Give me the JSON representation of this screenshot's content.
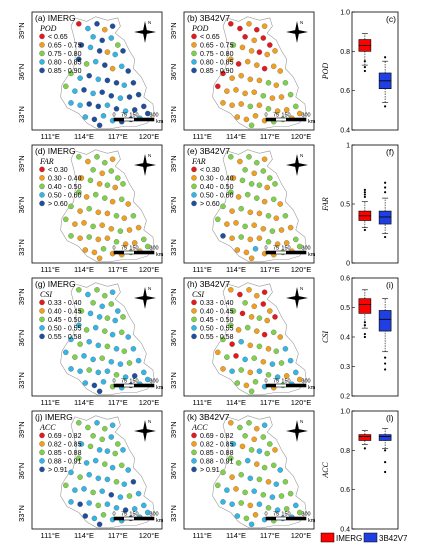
{
  "colors": {
    "dot": [
      "#e31a1c",
      "#f0a01e",
      "#7fd14b",
      "#33b5e5",
      "#1f4e9c"
    ],
    "imerg": "#ff0000",
    "gpm3b42": "#1f3fe0",
    "map_outline": "#9a9a9a"
  },
  "tick_labels": {
    "lat": [
      "39°N",
      "36°N",
      "33°N"
    ],
    "lon": [
      "111°E",
      "114°E",
      "117°E",
      "120°E"
    ]
  },
  "scale_bar": {
    "ticks": [
      "0",
      "75",
      "150",
      "300"
    ],
    "unit": "km"
  },
  "legend_bottom": [
    {
      "label": "IMERG",
      "color": "#ff0000"
    },
    {
      "label": "3B42V7",
      "color": "#1f3fe0"
    }
  ],
  "rows": [
    {
      "metric": "POD",
      "class_labels": [
        "< 0.65",
        "0.65 - 0.75",
        "0.75 - 0.80",
        "0.80 - 0.85",
        "0.85 - 0.90"
      ],
      "maps": [
        {
          "panel": "(a)",
          "product": "IMERG",
          "classes": [
            0,
            3,
            4,
            1,
            4,
            3,
            4,
            3,
            2,
            4,
            3,
            4,
            1,
            3,
            4,
            4,
            2,
            3,
            4,
            1,
            3,
            4,
            2,
            3,
            4,
            3,
            4,
            4,
            3,
            4,
            2,
            3,
            4,
            3,
            4,
            4,
            3,
            4,
            4,
            3,
            3,
            4,
            4,
            3,
            4,
            3,
            4,
            4,
            3,
            4,
            3,
            3,
            4,
            4,
            3,
            4,
            4
          ]
        },
        {
          "panel": "(b)",
          "product": "3B42V7",
          "classes": [
            0,
            0,
            1,
            0,
            1,
            0,
            1,
            0,
            0,
            2,
            1,
            1,
            0,
            1,
            1,
            1,
            0,
            1,
            1,
            0,
            1,
            1,
            0,
            1,
            1,
            1,
            1,
            2,
            1,
            2,
            0,
            1,
            1,
            1,
            1,
            2,
            1,
            1,
            2,
            1,
            1,
            1,
            2,
            1,
            2,
            1,
            1,
            2,
            1,
            1,
            1,
            1,
            2,
            2,
            1,
            1,
            2
          ]
        }
      ],
      "box": {
        "panel": "(c)",
        "ylabel": "POD",
        "ylim": [
          0.4,
          1.0
        ],
        "yticks": [
          "0.4",
          "0.6",
          "0.8",
          "1.0"
        ],
        "boxes": [
          {
            "name": "IMERG",
            "whisker_low": 0.73,
            "q1": 0.8,
            "median": 0.83,
            "q3": 0.86,
            "whisker_high": 0.89,
            "outliers": [
              0.75,
              0.72,
              0.7
            ]
          },
          {
            "name": "3B42V7",
            "whisker_low": 0.54,
            "q1": 0.61,
            "median": 0.65,
            "q3": 0.69,
            "whisker_high": 0.75,
            "outliers": [
              0.52,
              0.77
            ]
          }
        ]
      }
    },
    {
      "metric": "FAR",
      "class_labels": [
        "< 0.30",
        "0.30 - 0.40",
        "0.40 - 0.50",
        "0.50 - 0.60",
        "> 0.60"
      ],
      "maps": [
        {
          "panel": "(d)",
          "product": "IMERG",
          "classes": [
            2,
            1,
            2,
            2,
            1,
            2,
            1,
            2,
            2,
            1,
            2,
            1,
            2,
            1,
            2,
            2,
            1,
            2,
            2,
            1,
            2,
            1,
            2,
            1,
            2,
            1,
            1,
            2,
            1,
            2,
            2,
            1,
            1,
            2,
            1,
            1,
            2,
            1,
            1,
            2,
            1,
            2,
            1,
            1,
            2,
            1,
            1,
            2,
            1,
            1,
            2,
            1,
            1,
            2,
            1,
            2,
            1
          ]
        },
        {
          "panel": "(e)",
          "product": "3B42V7",
          "classes": [
            2,
            1,
            2,
            2,
            1,
            2,
            1,
            2,
            2,
            1,
            2,
            2,
            2,
            1,
            2,
            2,
            1,
            2,
            2,
            1,
            2,
            1,
            2,
            1,
            2,
            1,
            1,
            2,
            1,
            2,
            2,
            1,
            1,
            2,
            1,
            1,
            2,
            1,
            1,
            4,
            1,
            2,
            1,
            1,
            2,
            1,
            1,
            2,
            1,
            1,
            3,
            1,
            1,
            2,
            1,
            2,
            1
          ]
        }
      ],
      "box": {
        "panel": "(f)",
        "ylabel": "FAR",
        "ylim": [
          0.0,
          1.0
        ],
        "yticks": [
          "0",
          "0.5",
          "1"
        ],
        "boxes": [
          {
            "name": "IMERG",
            "whisker_low": 0.3,
            "q1": 0.36,
            "median": 0.4,
            "q3": 0.44,
            "whisker_high": 0.52,
            "outliers": [
              0.56,
              0.58,
              0.6,
              0.62,
              0.28
            ]
          },
          {
            "name": "3B42V7",
            "whisker_low": 0.25,
            "q1": 0.33,
            "median": 0.39,
            "q3": 0.44,
            "whisker_high": 0.55,
            "outliers": [
              0.6,
              0.64,
              0.68,
              0.22
            ]
          }
        ]
      }
    },
    {
      "metric": "CSI",
      "class_labels": [
        "0.33 - 0.40",
        "0.40 - 0.45",
        "0.45 - 0.50",
        "0.50 - 0.55",
        "0.55 - 0.58"
      ],
      "maps": [
        {
          "panel": "(g)",
          "product": "IMERG",
          "classes": [
            2,
            3,
            2,
            2,
            3,
            2,
            3,
            2,
            3,
            2,
            3,
            3,
            2,
            3,
            2,
            3,
            2,
            3,
            2,
            3,
            2,
            3,
            3,
            2,
            3,
            3,
            2,
            3,
            2,
            3,
            3,
            2,
            3,
            3,
            2,
            3,
            3,
            2,
            3,
            3,
            3,
            2,
            3,
            3,
            2,
            3,
            4,
            3,
            3,
            4,
            3,
            2,
            3,
            4,
            3,
            3,
            4
          ]
        },
        {
          "panel": "(h)",
          "product": "3B42V7",
          "classes": [
            1,
            0,
            1,
            1,
            0,
            2,
            1,
            0,
            1,
            2,
            0,
            1,
            2,
            1,
            0,
            2,
            1,
            2,
            1,
            0,
            2,
            1,
            2,
            0,
            3,
            1,
            2,
            1,
            2,
            3,
            1,
            2,
            0,
            3,
            2,
            1,
            3,
            2,
            3,
            1,
            3,
            2,
            1,
            3,
            2,
            3,
            1,
            3,
            2,
            1,
            2,
            3,
            1,
            2,
            3,
            1,
            2
          ]
        }
      ],
      "box": {
        "panel": "(i)",
        "ylabel": "CSI",
        "ylim": [
          0.2,
          0.6
        ],
        "yticks": [
          "0.2",
          "0.3",
          "0.4",
          "0.5",
          "0.6"
        ],
        "boxes": [
          {
            "name": "IMERG",
            "whisker_low": 0.43,
            "q1": 0.48,
            "median": 0.51,
            "q3": 0.53,
            "whisker_high": 0.56,
            "outliers": [
              0.41,
              0.4,
              0.45,
              0.44
            ]
          },
          {
            "name": "3B42V7",
            "whisker_low": 0.35,
            "q1": 0.42,
            "median": 0.46,
            "q3": 0.49,
            "whisker_high": 0.53,
            "outliers": [
              0.33,
              0.31,
              0.29
            ]
          }
        ]
      }
    },
    {
      "metric": "ACC",
      "class_labels": [
        "0.69 - 0.82",
        "0.82 - 0.85",
        "0.85 - 0.88",
        "0.88 - 0.91",
        "> 0.91"
      ],
      "maps": [
        {
          "panel": "(j)",
          "product": "IMERG",
          "classes": [
            2,
            2,
            3,
            2,
            3,
            2,
            2,
            3,
            2,
            3,
            2,
            3,
            3,
            2,
            3,
            2,
            3,
            3,
            2,
            3,
            2,
            3,
            3,
            2,
            3,
            3,
            3,
            2,
            3,
            4,
            2,
            3,
            3,
            2,
            3,
            4,
            3,
            2,
            3,
            3,
            4,
            3,
            2,
            3,
            3,
            4,
            3,
            3,
            4,
            3,
            2,
            3,
            3,
            4,
            3,
            3,
            4
          ]
        },
        {
          "panel": "(k)",
          "product": "3B42V7",
          "classes": [
            1,
            2,
            2,
            1,
            3,
            2,
            1,
            2,
            2,
            3,
            1,
            2,
            3,
            2,
            1,
            2,
            2,
            3,
            1,
            2,
            2,
            3,
            2,
            1,
            2,
            3,
            2,
            1,
            3,
            2,
            2,
            3,
            1,
            2,
            3,
            2,
            3,
            2,
            2,
            3,
            3,
            2,
            1,
            3,
            2,
            3,
            2,
            3,
            3,
            2,
            1,
            3,
            2,
            3,
            3,
            2,
            3
          ]
        }
      ],
      "box": {
        "panel": "(l)",
        "ylabel": "ACC",
        "ylim": [
          0.4,
          1.0
        ],
        "yticks": [
          "0.4",
          "0.6",
          "0.8",
          "1.0"
        ],
        "boxes": [
          {
            "name": "IMERG",
            "whisker_low": 0.83,
            "q1": 0.85,
            "median": 0.87,
            "q3": 0.88,
            "whisker_high": 0.9,
            "outliers": [
              0.81
            ]
          },
          {
            "name": "3B42V7",
            "whisker_low": 0.81,
            "q1": 0.85,
            "median": 0.87,
            "q3": 0.88,
            "whisker_high": 0.91,
            "outliers": [
              0.8,
              0.74,
              0.69
            ]
          }
        ]
      }
    }
  ],
  "chart_data": [
    {
      "type": "box",
      "panel": "(c)",
      "ylabel": "POD",
      "categories": [
        "IMERG",
        "3B42V7"
      ],
      "series": [
        {
          "name": "IMERG",
          "values": [
            0.73,
            0.8,
            0.83,
            0.86,
            0.89
          ]
        },
        {
          "name": "3B42V7",
          "values": [
            0.54,
            0.61,
            0.65,
            0.69,
            0.75
          ]
        }
      ],
      "ylim": [
        0.4,
        1.0
      ]
    },
    {
      "type": "box",
      "panel": "(f)",
      "ylabel": "FAR",
      "categories": [
        "IMERG",
        "3B42V7"
      ],
      "series": [
        {
          "name": "IMERG",
          "values": [
            0.3,
            0.36,
            0.4,
            0.44,
            0.52
          ]
        },
        {
          "name": "3B42V7",
          "values": [
            0.25,
            0.33,
            0.39,
            0.44,
            0.55
          ]
        }
      ],
      "ylim": [
        0.0,
        1.0
      ]
    },
    {
      "type": "box",
      "panel": "(i)",
      "ylabel": "CSI",
      "categories": [
        "IMERG",
        "3B42V7"
      ],
      "series": [
        {
          "name": "IMERG",
          "values": [
            0.43,
            0.48,
            0.51,
            0.53,
            0.56
          ]
        },
        {
          "name": "3B42V7",
          "values": [
            0.35,
            0.42,
            0.46,
            0.49,
            0.53
          ]
        }
      ],
      "ylim": [
        0.2,
        0.6
      ]
    },
    {
      "type": "box",
      "panel": "(l)",
      "ylabel": "ACC",
      "categories": [
        "IMERG",
        "3B42V7"
      ],
      "series": [
        {
          "name": "IMERG",
          "values": [
            0.83,
            0.85,
            0.87,
            0.88,
            0.9
          ]
        },
        {
          "name": "3B42V7",
          "values": [
            0.81,
            0.85,
            0.87,
            0.88,
            0.91
          ]
        }
      ],
      "ylim": [
        0.4,
        1.0
      ]
    }
  ]
}
